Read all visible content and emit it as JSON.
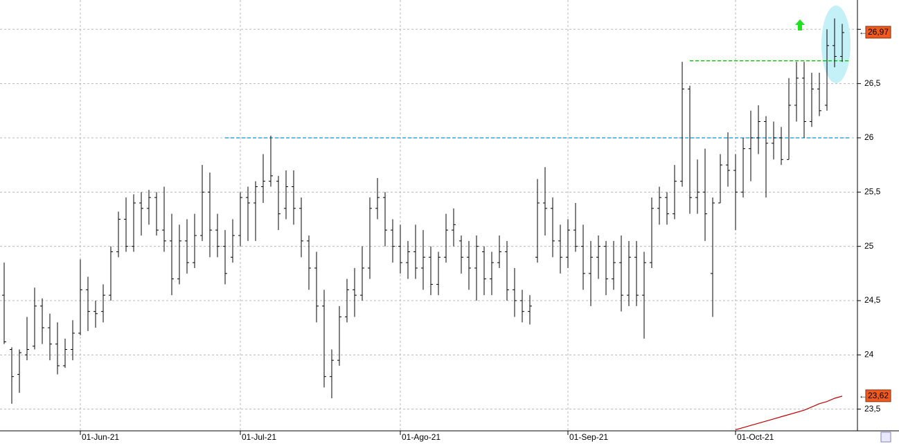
{
  "chart_data": {
    "type": "ohlc",
    "color": "#000000",
    "categories": [
      null,
      null,
      null,
      null,
      null,
      null,
      null,
      null,
      null,
      null,
      "01-Jun-21",
      null,
      null,
      null,
      null,
      null,
      null,
      null,
      null,
      null,
      null,
      null,
      null,
      null,
      null,
      null,
      null,
      null,
      null,
      null,
      null,
      "01-Jul-21",
      null,
      null,
      null,
      null,
      null,
      null,
      null,
      null,
      null,
      null,
      null,
      null,
      null,
      null,
      null,
      null,
      null,
      null,
      null,
      null,
      "01-Ago-21",
      null,
      null,
      null,
      null,
      null,
      null,
      null,
      null,
      null,
      null,
      null,
      null,
      null,
      null,
      null,
      null,
      null,
      null,
      null,
      null,
      null,
      "01-Sep-21",
      null,
      null,
      null,
      null,
      null,
      null,
      null,
      null,
      null,
      null,
      null,
      null,
      null,
      null,
      null,
      null,
      null,
      null,
      null,
      null,
      null,
      "01-Oct-21",
      null,
      null,
      null,
      null,
      null,
      null,
      null,
      null,
      null,
      null,
      null,
      null,
      null,
      null
    ],
    "open": [
      24.55,
      24.05,
      23.82,
      24.0,
      24.08,
      24.45,
      24.25,
      24.1,
      23.9,
      24.05,
      24.2,
      24.6,
      24.4,
      24.4,
      24.55,
      24.95,
      25.25,
      25.0,
      25.4,
      25.35,
      25.45,
      25.15,
      25.05,
      24.7,
      25.05,
      24.85,
      25.1,
      25.5,
      25.15,
      25.0,
      24.9,
      25.1,
      25.45,
      25.4,
      25.55,
      25.6,
      25.6,
      25.35,
      25.55,
      25.35,
      25.05,
      24.8,
      24.45,
      23.8,
      23.95,
      24.35,
      24.6,
      24.55,
      24.8,
      25.35,
      25.45,
      25.15,
      25.0,
      24.85,
      24.95,
      24.8,
      24.9,
      24.65,
      24.9,
      25.15,
      25.05,
      24.9,
      24.8,
      24.95,
      24.7,
      24.85,
      24.95,
      24.6,
      24.5,
      24.4,
      24.9,
      25.4,
      25.35,
      25.05,
      24.9,
      25.15,
      25.0,
      24.75,
      24.9,
      25.0,
      24.7,
      24.85,
      24.55,
      24.9,
      24.55,
      24.85,
      25.35,
      25.45,
      25.3,
      25.6,
      26.45,
      25.45,
      25.5,
      24.75,
      25.4,
      25.75,
      25.7,
      25.5,
      25.9,
      26.0,
      26.15,
      25.95,
      26.0,
      25.8,
      26.3,
      26.55,
      26.15,
      26.45,
      26.3,
      26.85,
      26.75
    ],
    "high": [
      24.85,
      24.07,
      24.05,
      24.35,
      24.62,
      24.52,
      24.38,
      24.3,
      24.15,
      24.32,
      24.88,
      24.72,
      24.5,
      24.65,
      25.0,
      25.32,
      25.45,
      25.48,
      25.5,
      25.52,
      25.5,
      25.55,
      25.3,
      25.2,
      25.25,
      25.3,
      25.75,
      25.68,
      25.3,
      25.15,
      25.25,
      25.5,
      25.55,
      25.6,
      25.85,
      26.02,
      25.65,
      25.7,
      25.7,
      25.45,
      25.1,
      24.95,
      24.6,
      24.05,
      24.45,
      24.7,
      24.8,
      25.0,
      25.45,
      25.63,
      25.5,
      25.25,
      25.2,
      25.05,
      25.2,
      25.15,
      25.0,
      24.95,
      25.3,
      25.35,
      25.1,
      25.05,
      25.1,
      25.0,
      24.95,
      25.1,
      25.05,
      24.8,
      24.6,
      24.55,
      25.62,
      25.73,
      25.45,
      25.2,
      25.25,
      25.4,
      25.2,
      25.05,
      25.1,
      25.05,
      25.05,
      25.1,
      25.05,
      25.05,
      24.95,
      25.45,
      25.55,
      25.5,
      25.75,
      26.7,
      26.48,
      25.8,
      25.9,
      25.45,
      25.85,
      26.05,
      25.85,
      26.0,
      26.25,
      26.3,
      26.2,
      26.15,
      26.1,
      26.55,
      26.7,
      26.7,
      26.6,
      26.6,
      27.0,
      27.1,
      27.05
    ],
    "low": [
      24.1,
      23.55,
      23.65,
      23.95,
      24.05,
      24.1,
      23.95,
      23.82,
      23.88,
      23.95,
      24.18,
      24.22,
      24.25,
      24.3,
      24.5,
      24.9,
      24.95,
      24.95,
      25.1,
      25.2,
      25.1,
      24.95,
      24.55,
      24.65,
      24.75,
      24.8,
      25.05,
      24.9,
      24.9,
      24.65,
      24.85,
      25.0,
      25.05,
      25.05,
      25.4,
      25.55,
      25.15,
      25.25,
      25.2,
      24.9,
      24.6,
      24.3,
      23.7,
      23.6,
      23.9,
      24.3,
      24.35,
      24.5,
      24.7,
      25.25,
      25.0,
      24.85,
      24.75,
      24.7,
      24.7,
      24.6,
      24.55,
      24.55,
      24.85,
      25.0,
      24.75,
      24.6,
      24.5,
      24.55,
      24.55,
      24.8,
      24.5,
      24.35,
      24.3,
      24.28,
      24.85,
      25.1,
      24.9,
      24.75,
      24.8,
      24.95,
      24.6,
      24.45,
      24.7,
      24.55,
      24.6,
      24.4,
      24.45,
      24.45,
      24.15,
      24.8,
      25.2,
      25.2,
      25.25,
      25.55,
      25.3,
      25.3,
      25.05,
      24.35,
      25.4,
      25.55,
      25.15,
      25.45,
      25.6,
      25.85,
      25.45,
      25.8,
      25.75,
      25.8,
      26.15,
      26.0,
      26.1,
      26.2,
      26.25,
      26.65,
      26.7
    ],
    "close": [
      24.12,
      23.8,
      24.02,
      24.05,
      24.45,
      24.25,
      24.1,
      23.9,
      24.05,
      24.2,
      24.6,
      24.4,
      24.38,
      24.55,
      24.95,
      25.25,
      25.0,
      25.4,
      25.35,
      25.45,
      25.15,
      25.05,
      24.7,
      25.05,
      24.85,
      25.1,
      25.5,
      25.15,
      25.0,
      24.75,
      25.1,
      25.45,
      25.4,
      25.55,
      25.6,
      25.65,
      25.3,
      25.55,
      25.35,
      25.05,
      24.8,
      24.45,
      23.8,
      23.95,
      24.35,
      24.6,
      24.55,
      24.8,
      25.35,
      25.45,
      25.15,
      25.0,
      24.85,
      24.95,
      24.8,
      24.9,
      24.65,
      24.9,
      25.15,
      25.2,
      24.9,
      24.8,
      25.0,
      24.7,
      24.85,
      24.95,
      24.6,
      24.5,
      24.4,
      24.45,
      25.4,
      25.35,
      25.05,
      24.9,
      25.15,
      25.0,
      24.75,
      24.9,
      25.0,
      24.7,
      24.85,
      24.55,
      24.9,
      24.55,
      24.85,
      25.35,
      25.45,
      25.3,
      25.6,
      26.45,
      25.45,
      25.5,
      25.3,
      25.4,
      25.75,
      25.7,
      25.5,
      25.9,
      26.0,
      26.15,
      25.95,
      26.0,
      25.8,
      26.3,
      26.55,
      26.15,
      26.45,
      26.25,
      26.85,
      26.75,
      26.97
    ],
    "moving_average": {
      "color": "#c00000",
      "values": [
        null,
        null,
        null,
        null,
        null,
        null,
        null,
        null,
        null,
        null,
        null,
        null,
        null,
        null,
        null,
        null,
        null,
        null,
        null,
        null,
        null,
        null,
        null,
        null,
        null,
        null,
        null,
        null,
        null,
        null,
        null,
        null,
        null,
        null,
        null,
        null,
        null,
        null,
        null,
        null,
        null,
        null,
        null,
        null,
        null,
        null,
        null,
        null,
        null,
        null,
        null,
        null,
        null,
        null,
        null,
        null,
        null,
        null,
        null,
        null,
        null,
        null,
        null,
        null,
        null,
        null,
        null,
        null,
        null,
        null,
        null,
        null,
        null,
        null,
        null,
        null,
        null,
        null,
        null,
        null,
        null,
        null,
        null,
        null,
        null,
        null,
        null,
        null,
        null,
        null,
        null,
        null,
        null,
        null,
        null,
        null,
        23.31,
        23.33,
        23.35,
        23.37,
        23.39,
        23.41,
        23.43,
        23.45,
        23.47,
        23.49,
        23.52,
        23.55,
        23.57,
        23.6,
        23.62
      ]
    },
    "levels": [
      {
        "value": 26.0,
        "start": 29,
        "color": "#1ab0e8"
      },
      {
        "value": 26.71,
        "start": 90,
        "color": "#20c020"
      }
    ],
    "last_price": {
      "value": 26.97,
      "label": "26,97"
    },
    "ma_last": {
      "value": 23.62,
      "label": "23,62"
    },
    "ylim": [
      23.3,
      27.27
    ],
    "yticks": [
      {
        "value": 23.5,
        "label": "23,5"
      },
      24,
      {
        "value": 24.5,
        "label": "24,5"
      },
      25,
      {
        "value": 25.5,
        "label": "25,5"
      },
      26,
      {
        "value": 26.5,
        "label": "26,5"
      },
      {
        "value": 27,
        "label": null
      }
    ],
    "grid": true
  }
}
